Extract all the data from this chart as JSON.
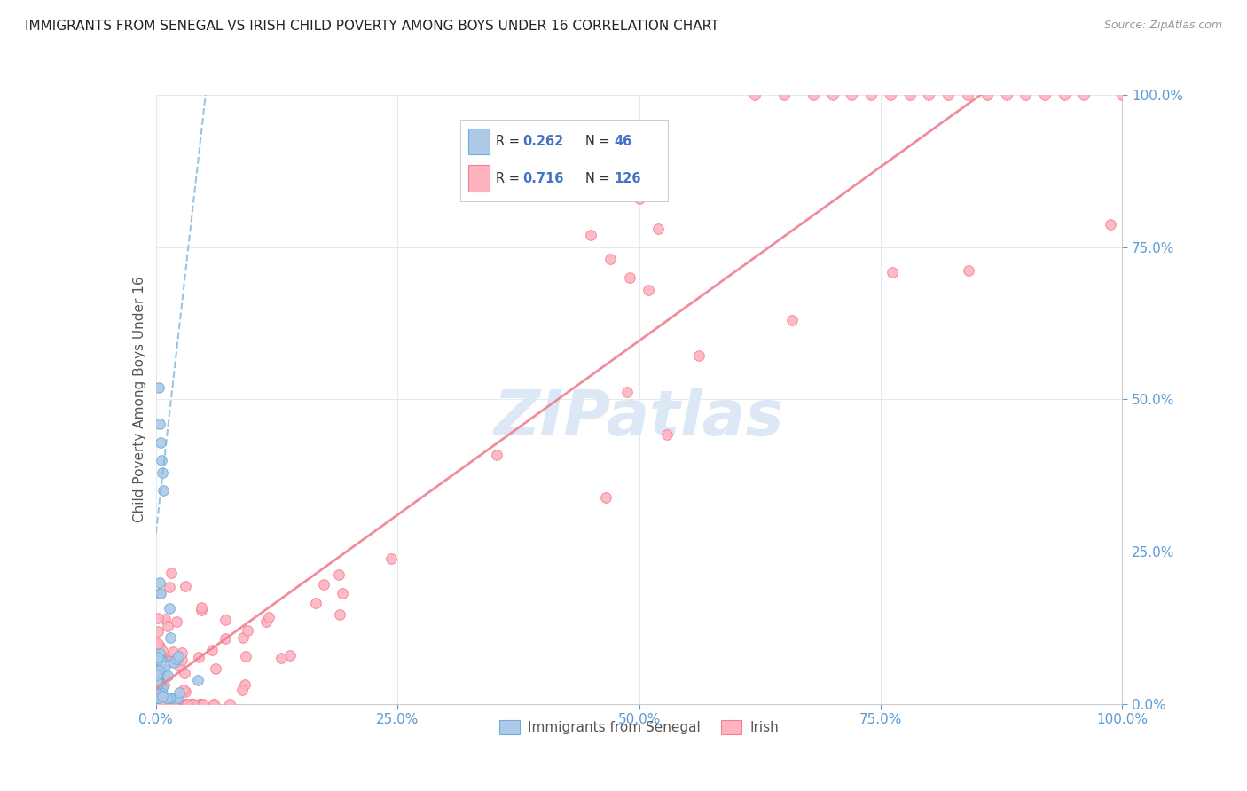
{
  "title": "IMMIGRANTS FROM SENEGAL VS IRISH CHILD POVERTY AMONG BOYS UNDER 16 CORRELATION CHART",
  "source": "Source: ZipAtlas.com",
  "ylabel": "Child Poverty Among Boys Under 16",
  "legend_label1": "Immigrants from Senegal",
  "legend_label2": "Irish",
  "r1": 0.262,
  "n1": 46,
  "r2": 0.716,
  "n2": 126,
  "blue_face": "#aec9e8",
  "blue_edge": "#6baed6",
  "pink_face": "#ffb3c1",
  "pink_edge": "#f08090",
  "blue_line_color": "#7fb8d8",
  "pink_line_color": "#f08090",
  "title_color": "#222222",
  "axis_label_color": "#5b9bd5",
  "legend_r_color": "#4472c4",
  "watermark_color": "#dce8f5",
  "background_color": "#ffffff",
  "tick_vals": [
    0,
    0.25,
    0.5,
    0.75,
    1.0
  ],
  "tick_labels": [
    "0.0%",
    "25.0%",
    "50.0%",
    "75.0%",
    "100.0%"
  ]
}
